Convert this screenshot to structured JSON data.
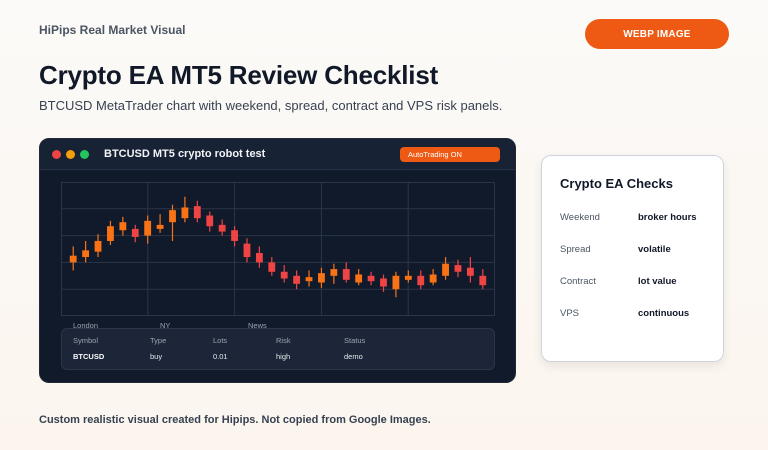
{
  "brand": "HiPips Real Market Visual",
  "badge": "WEBP IMAGE",
  "title": "Crypto EA MT5 Review Checklist",
  "subtitle": "BTCUSD MetaTrader chart with weekend, spread, contract and VPS risk panels.",
  "window": {
    "title": "BTCUSD MT5 crypto robot test",
    "status": "AutoTrading ON"
  },
  "sessions": [
    "London",
    "NY",
    "News"
  ],
  "table": {
    "headers": [
      "Symbol",
      "Type",
      "Lots",
      "Risk",
      "Status"
    ],
    "row": [
      "BTCUSD",
      "buy",
      "0.01",
      "high",
      "demo"
    ]
  },
  "checks": {
    "title": "Crypto EA Checks",
    "items": [
      {
        "label": "Weekend",
        "value": "broker hours"
      },
      {
        "label": "Spread",
        "value": "volatile"
      },
      {
        "label": "Contract",
        "value": "lot value"
      },
      {
        "label": "VPS",
        "value": "continuous"
      }
    ]
  },
  "footer": "Custom realistic visual created for Hipips. Not copied from Google Images.",
  "colors": {
    "accent": "#ee5a14",
    "bull": "#f97316",
    "bear": "#ef4444",
    "window_bg": "#111a2b"
  },
  "chart_data": {
    "type": "candlestick",
    "title": "",
    "xlabel": "",
    "ylabel": "",
    "ylim": [
      0,
      100
    ],
    "candles": [
      {
        "o": 40,
        "c": 45,
        "h": 52,
        "l": 34
      },
      {
        "o": 44,
        "c": 49,
        "h": 56,
        "l": 40
      },
      {
        "o": 48,
        "c": 56,
        "h": 61,
        "l": 44
      },
      {
        "o": 56,
        "c": 67,
        "h": 71,
        "l": 53
      },
      {
        "o": 64,
        "c": 70,
        "h": 74,
        "l": 60
      },
      {
        "o": 65,
        "c": 59,
        "h": 68,
        "l": 55
      },
      {
        "o": 60,
        "c": 71,
        "h": 75,
        "l": 54
      },
      {
        "o": 65,
        "c": 68,
        "h": 76,
        "l": 62
      },
      {
        "o": 70,
        "c": 79,
        "h": 83,
        "l": 56
      },
      {
        "o": 73,
        "c": 81,
        "h": 89,
        "l": 70
      },
      {
        "o": 82,
        "c": 73,
        "h": 86,
        "l": 70
      },
      {
        "o": 75,
        "c": 67,
        "h": 78,
        "l": 63
      },
      {
        "o": 68,
        "c": 63,
        "h": 72,
        "l": 60
      },
      {
        "o": 64,
        "c": 56,
        "h": 67,
        "l": 52
      },
      {
        "o": 54,
        "c": 44,
        "h": 58,
        "l": 40
      },
      {
        "o": 47,
        "c": 40,
        "h": 52,
        "l": 36
      },
      {
        "o": 40,
        "c": 33,
        "h": 44,
        "l": 30
      },
      {
        "o": 33,
        "c": 28,
        "h": 38,
        "l": 25
      },
      {
        "o": 30,
        "c": 24,
        "h": 34,
        "l": 20
      },
      {
        "o": 26,
        "c": 29,
        "h": 34,
        "l": 22
      },
      {
        "o": 25,
        "c": 32,
        "h": 36,
        "l": 21
      },
      {
        "o": 30,
        "c": 35,
        "h": 39,
        "l": 24
      },
      {
        "o": 35,
        "c": 27,
        "h": 40,
        "l": 25
      },
      {
        "o": 25,
        "c": 31,
        "h": 35,
        "l": 23
      },
      {
        "o": 30,
        "c": 26,
        "h": 33,
        "l": 23
      },
      {
        "o": 28,
        "c": 22,
        "h": 31,
        "l": 18
      },
      {
        "o": 20,
        "c": 30,
        "h": 33,
        "l": 14
      },
      {
        "o": 27,
        "c": 30,
        "h": 34,
        "l": 25
      },
      {
        "o": 30,
        "c": 23,
        "h": 34,
        "l": 20
      },
      {
        "o": 25,
        "c": 31,
        "h": 35,
        "l": 23
      },
      {
        "o": 30,
        "c": 39,
        "h": 44,
        "l": 27
      },
      {
        "o": 38,
        "c": 33,
        "h": 42,
        "l": 29
      },
      {
        "o": 36,
        "c": 30,
        "h": 44,
        "l": 25
      },
      {
        "o": 30,
        "c": 23,
        "h": 35,
        "l": 20
      }
    ]
  }
}
